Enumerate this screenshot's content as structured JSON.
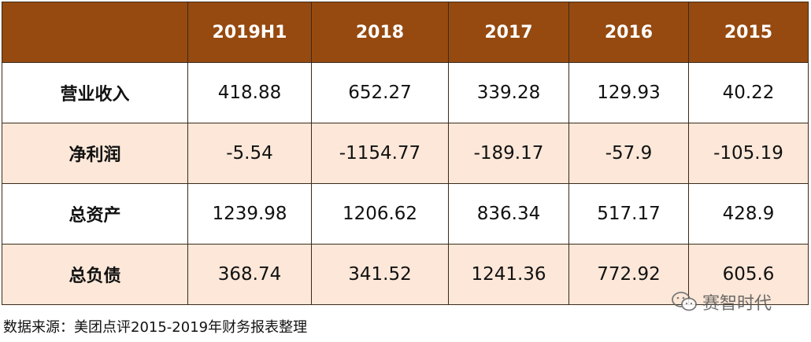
{
  "table": {
    "headers": [
      "",
      "2019H1",
      "2018",
      "2017",
      "2016",
      "2015"
    ],
    "rows": [
      {
        "label": "营业收入",
        "values": [
          "418.88",
          "652.27",
          "339.28",
          "129.93",
          "40.22"
        ]
      },
      {
        "label": "净利润",
        "values": [
          "-5.54",
          "-1154.77",
          "-189.17",
          "-57.9",
          "-105.19"
        ]
      },
      {
        "label": "总资产",
        "values": [
          "1239.98",
          "1206.62",
          "836.34",
          "517.17",
          "428.9"
        ]
      },
      {
        "label": "总负债",
        "values": [
          "368.74",
          "341.52",
          "1241.36",
          "772.92",
          "605.6"
        ]
      }
    ]
  },
  "source": "数据来源：美团点评2015-2019年财务报表整理",
  "watermark": {
    "text": "赛智时代",
    "icon": "wechat-icon"
  },
  "colors": {
    "header_bg": "#964a10",
    "header_text": "#ffffff",
    "row_alt_bg": "#fce7d8",
    "border": "#3a2a1a"
  }
}
